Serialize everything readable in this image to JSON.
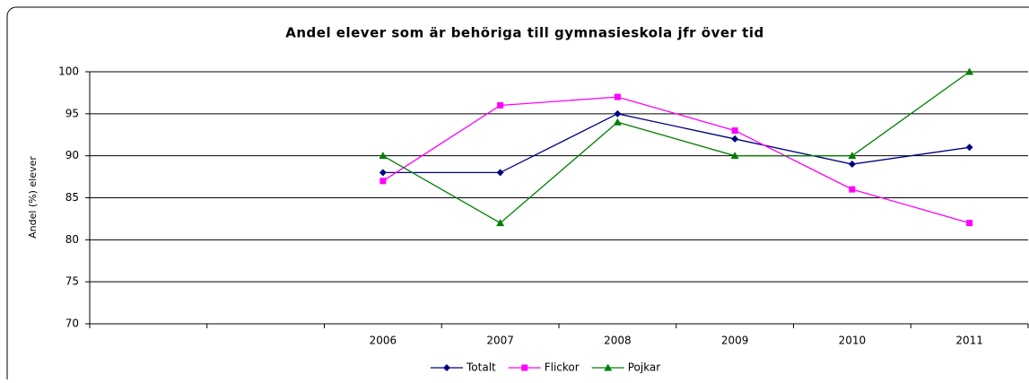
{
  "chart_data": {
    "type": "line",
    "title": "Andel elever som är behöriga till gymnasieskola jfr över tid",
    "y_label": "Andel (%) elever",
    "categories": [
      null,
      null,
      "2006",
      "2007",
      "2008",
      "2009",
      "2010",
      "2011"
    ],
    "series": [
      {
        "name": "Totalt",
        "color": "#000080",
        "marker": "diamond",
        "values": [
          null,
          null,
          88,
          88,
          95,
          92,
          89,
          91
        ]
      },
      {
        "name": "Flickor",
        "color": "#ff00ff",
        "marker": "square",
        "values": [
          null,
          null,
          87,
          96,
          97,
          93,
          86,
          82
        ]
      },
      {
        "name": "Pojkar",
        "color": "#008000",
        "marker": "triangle",
        "values": [
          null,
          null,
          90,
          82,
          94,
          90,
          90,
          100
        ]
      }
    ],
    "ylim": [
      70,
      100
    ],
    "yticks": [
      70,
      75,
      80,
      85,
      90,
      95,
      100
    ],
    "grid": true,
    "legend": "bottom"
  }
}
